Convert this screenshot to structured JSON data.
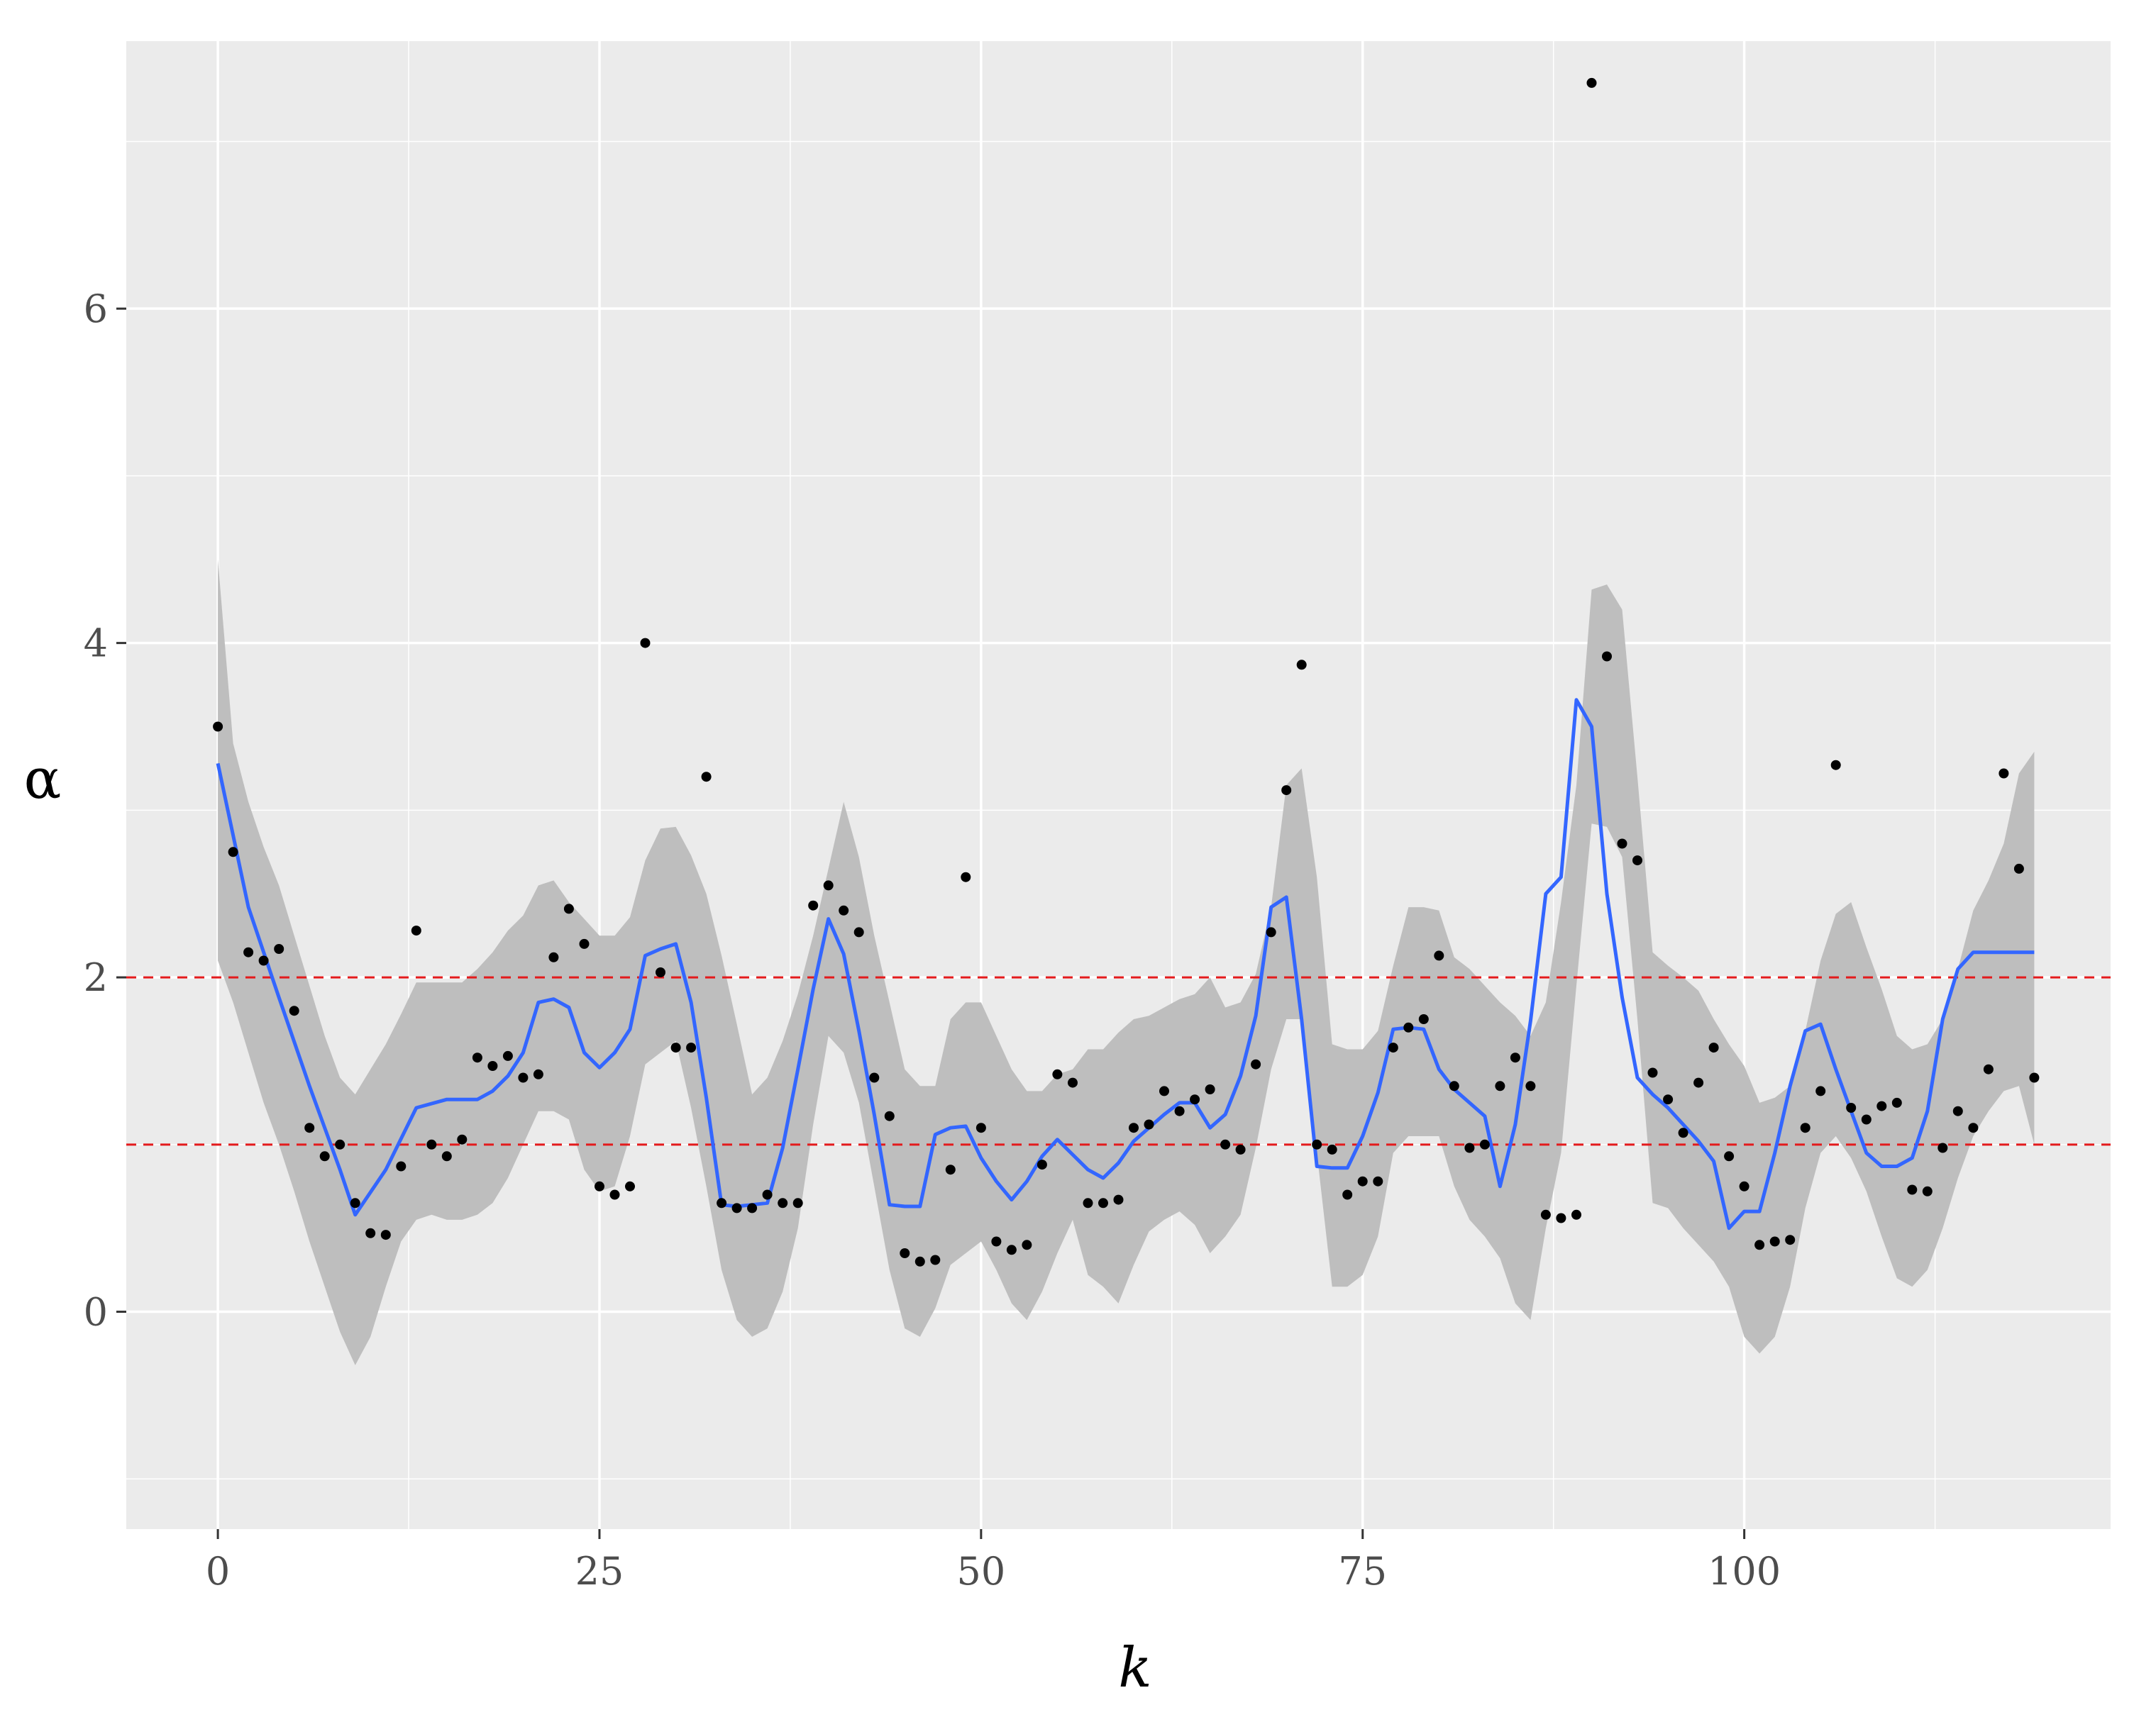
{
  "chart_data": {
    "type": "scatter",
    "title": "",
    "xlabel": "k",
    "ylabel": "α",
    "xlim": [
      -6,
      124
    ],
    "ylim": [
      -1.3,
      7.6
    ],
    "x_ticks": [
      0,
      25,
      50,
      75,
      100
    ],
    "x_tick_labels": [
      "0",
      "25",
      "50",
      "75",
      "100"
    ],
    "y_ticks": [
      0,
      2,
      4,
      6
    ],
    "y_tick_labels": [
      "0",
      "2",
      "4",
      "6"
    ],
    "grid": true,
    "legend": "none",
    "reference_lines": [
      {
        "y": 2,
        "style": "dashed",
        "color": "#e31a1c"
      },
      {
        "y": 1,
        "style": "dashed",
        "color": "#e31a1c"
      }
    ],
    "points": {
      "x": [
        0,
        1,
        2,
        3,
        4,
        5,
        6,
        7,
        8,
        9,
        10,
        11,
        12,
        13,
        14,
        15,
        16,
        17,
        18,
        19,
        20,
        21,
        22,
        23,
        24,
        25,
        26,
        27,
        28,
        29,
        30,
        31,
        32,
        33,
        34,
        35,
        36,
        37,
        38,
        39,
        40,
        41,
        42,
        43,
        44,
        45,
        46,
        47,
        48,
        49,
        50,
        51,
        52,
        53,
        54,
        55,
        56,
        57,
        58,
        59,
        60,
        61,
        62,
        63,
        64,
        65,
        66,
        67,
        68,
        69,
        70,
        71,
        72,
        73,
        74,
        75,
        76,
        77,
        78,
        79,
        80,
        81,
        82,
        83,
        84,
        85,
        86,
        87,
        88,
        89,
        90,
        91,
        92,
        93,
        94,
        95,
        96,
        97,
        98,
        99,
        100,
        101,
        102,
        103,
        104,
        105,
        106,
        107,
        108,
        109,
        110,
        111,
        112,
        113,
        114,
        115,
        116,
        117,
        118,
        119
      ],
      "y": [
        3.5,
        2.75,
        2.15,
        2.1,
        2.17,
        1.8,
        1.1,
        0.93,
        1.0,
        0.65,
        0.47,
        0.46,
        0.87,
        2.28,
        1.0,
        0.93,
        1.03,
        1.52,
        1.47,
        1.53,
        1.4,
        1.42,
        2.12,
        2.41,
        2.2,
        0.75,
        0.7,
        0.75,
        4.0,
        2.03,
        1.58,
        1.58,
        3.2,
        0.65,
        0.62,
        0.62,
        0.7,
        0.65,
        0.65,
        2.43,
        2.55,
        2.4,
        2.27,
        1.4,
        1.17,
        0.35,
        0.3,
        0.31,
        0.85,
        2.6,
        1.1,
        0.42,
        0.37,
        0.4,
        0.88,
        1.42,
        1.37,
        0.65,
        0.65,
        0.67,
        1.1,
        1.12,
        1.32,
        1.2,
        1.27,
        1.33,
        1.0,
        0.97,
        1.48,
        2.27,
        3.12,
        3.87,
        1.0,
        0.97,
        0.7,
        0.78,
        0.78,
        1.58,
        1.7,
        1.75,
        2.13,
        1.35,
        0.98,
        1.0,
        1.35,
        1.52,
        1.35,
        0.58,
        0.56,
        0.58,
        7.35,
        3.92,
        2.8,
        2.7,
        1.43,
        1.27,
        1.07,
        1.37,
        1.58,
        0.93,
        0.75,
        0.4,
        0.42,
        0.43,
        1.1,
        1.32,
        3.27,
        1.22,
        1.15,
        1.23,
        1.25,
        0.73,
        0.72,
        0.98,
        1.2,
        1.1,
        1.45,
        3.22,
        2.65,
        1.4
      ],
      "color": "#000000"
    },
    "series": [
      {
        "type": "smooth_line",
        "color": "#3366ff",
        "x": [
          0,
          2,
          4,
          6,
          8,
          9,
          11,
          13,
          15,
          17,
          18,
          19,
          20,
          21,
          22,
          23,
          24,
          25,
          26,
          27,
          28,
          29,
          30,
          31,
          32,
          33,
          34,
          35,
          36,
          37,
          38,
          39,
          40,
          41,
          42,
          43,
          44,
          45,
          46,
          47,
          48,
          49,
          50,
          51,
          52,
          53,
          54,
          55,
          56,
          57,
          58,
          59,
          60,
          61,
          62,
          63,
          64,
          65,
          66,
          67,
          68,
          69,
          70,
          71,
          72,
          73,
          74,
          75,
          76,
          77,
          78,
          79,
          80,
          81,
          82,
          83,
          84,
          85,
          86,
          87,
          88,
          89,
          90,
          91,
          92,
          93,
          94,
          95,
          96,
          97,
          98,
          99,
          100,
          101,
          102,
          103,
          104,
          105,
          106,
          107,
          108,
          109,
          110,
          111,
          112,
          113,
          114,
          115,
          116,
          117,
          118,
          119
        ],
        "y": [
          3.28,
          2.42,
          1.88,
          1.35,
          0.85,
          0.58,
          0.85,
          1.22,
          1.27,
          1.27,
          1.32,
          1.41,
          1.55,
          1.85,
          1.87,
          1.82,
          1.55,
          1.46,
          1.55,
          1.69,
          2.13,
          2.17,
          2.2,
          1.85,
          1.28,
          0.64,
          0.63,
          0.64,
          0.65,
          0.98,
          1.45,
          1.93,
          2.35,
          2.14,
          1.68,
          1.18,
          0.64,
          0.63,
          0.63,
          1.06,
          1.1,
          1.11,
          0.92,
          0.78,
          0.67,
          0.78,
          0.93,
          1.03,
          0.94,
          0.85,
          0.8,
          0.89,
          1.02,
          1.1,
          1.18,
          1.25,
          1.25,
          1.1,
          1.18,
          1.41,
          1.77,
          2.42,
          2.48,
          1.75,
          0.87,
          0.86,
          0.86,
          1.05,
          1.31,
          1.69,
          1.7,
          1.69,
          1.45,
          1.33,
          1.25,
          1.17,
          0.75,
          1.12,
          1.74,
          2.5,
          2.6,
          3.66,
          3.5,
          2.5,
          1.88,
          1.4,
          1.3,
          1.22,
          1.12,
          1.02,
          0.9,
          0.5,
          0.6,
          0.6,
          0.95,
          1.35,
          1.68,
          1.72,
          1.45,
          1.2,
          0.95,
          0.87,
          0.87,
          0.92,
          1.2,
          1.75,
          2.05,
          2.15,
          2.15,
          2.15,
          2.15,
          2.15
        ]
      }
    ],
    "band": {
      "color": "#bebebe",
      "x": [
        0,
        1,
        2,
        3,
        4,
        5,
        6,
        7,
        8,
        9,
        10,
        11,
        12,
        13,
        14,
        15,
        16,
        17,
        18,
        19,
        20,
        21,
        22,
        23,
        24,
        25,
        26,
        27,
        28,
        29,
        30,
        31,
        32,
        33,
        34,
        35,
        36,
        37,
        38,
        39,
        40,
        41,
        42,
        43,
        44,
        45,
        46,
        47,
        48,
        49,
        50,
        51,
        52,
        53,
        54,
        55,
        56,
        57,
        58,
        59,
        60,
        61,
        62,
        63,
        64,
        65,
        66,
        67,
        68,
        69,
        70,
        71,
        72,
        73,
        74,
        75,
        76,
        77,
        78,
        79,
        80,
        81,
        82,
        83,
        84,
        85,
        86,
        87,
        88,
        89,
        90,
        91,
        92,
        93,
        94,
        95,
        96,
        97,
        98,
        99,
        100,
        101,
        102,
        103,
        104,
        105,
        106,
        107,
        108,
        109,
        110,
        111,
        112,
        113,
        114,
        115,
        116,
        117,
        118,
        119
      ],
      "upper": [
        4.5,
        3.4,
        3.05,
        2.78,
        2.55,
        2.25,
        1.95,
        1.65,
        1.4,
        1.3,
        1.45,
        1.6,
        1.78,
        1.97,
        1.97,
        1.97,
        1.97,
        2.05,
        2.15,
        2.28,
        2.37,
        2.55,
        2.58,
        2.45,
        2.35,
        2.25,
        2.25,
        2.36,
        2.7,
        2.89,
        2.9,
        2.73,
        2.5,
        2.13,
        1.72,
        1.3,
        1.4,
        1.62,
        1.9,
        2.25,
        2.65,
        3.05,
        2.72,
        2.25,
        1.85,
        1.45,
        1.35,
        1.35,
        1.75,
        1.85,
        1.85,
        1.65,
        1.45,
        1.32,
        1.32,
        1.42,
        1.45,
        1.57,
        1.57,
        1.67,
        1.75,
        1.77,
        1.82,
        1.87,
        1.9,
        2.0,
        1.82,
        1.85,
        2.02,
        2.42,
        3.15,
        3.25,
        2.6,
        1.6,
        1.57,
        1.57,
        1.68,
        2.07,
        2.42,
        2.42,
        2.4,
        2.12,
        2.05,
        1.95,
        1.85,
        1.77,
        1.65,
        1.85,
        2.45,
        3.15,
        4.32,
        4.35,
        4.2,
        3.2,
        2.15,
        2.07,
        2.0,
        1.92,
        1.75,
        1.6,
        1.47,
        1.25,
        1.28,
        1.35,
        1.68,
        2.1,
        2.38,
        2.45,
        2.18,
        1.93,
        1.65,
        1.57,
        1.6,
        1.75,
        2.05,
        2.4,
        2.58,
        2.8,
        3.22,
        3.35
      ],
      "lower": [
        2.1,
        1.85,
        1.55,
        1.25,
        1.0,
        0.72,
        0.42,
        0.15,
        -0.12,
        -0.32,
        -0.15,
        0.15,
        0.42,
        0.55,
        0.58,
        0.55,
        0.55,
        0.58,
        0.65,
        0.8,
        1.0,
        1.2,
        1.2,
        1.15,
        0.85,
        0.72,
        0.75,
        1.05,
        1.48,
        1.55,
        1.62,
        1.22,
        0.75,
        0.25,
        -0.05,
        -0.15,
        -0.1,
        0.12,
        0.5,
        1.12,
        1.65,
        1.55,
        1.25,
        0.75,
        0.25,
        -0.1,
        -0.15,
        0.02,
        0.28,
        0.35,
        0.42,
        0.25,
        0.05,
        -0.05,
        0.12,
        0.35,
        0.55,
        0.22,
        0.15,
        0.05,
        0.28,
        0.48,
        0.55,
        0.6,
        0.52,
        0.35,
        0.45,
        0.58,
        0.98,
        1.45,
        1.75,
        1.75,
        0.95,
        0.15,
        0.15,
        0.22,
        0.45,
        0.95,
        1.05,
        1.05,
        1.05,
        0.75,
        0.55,
        0.45,
        0.32,
        0.05,
        -0.05,
        0.5,
        0.95,
        1.95,
        2.92,
        2.9,
        2.72,
        1.75,
        0.65,
        0.62,
        0.5,
        0.4,
        0.3,
        0.15,
        -0.15,
        -0.25,
        -0.15,
        0.15,
        0.62,
        0.95,
        1.05,
        0.92,
        0.72,
        0.45,
        0.2,
        0.15,
        0.25,
        0.5,
        0.8,
        1.05,
        1.2,
        1.32,
        1.35,
        1.0
      ]
    }
  }
}
